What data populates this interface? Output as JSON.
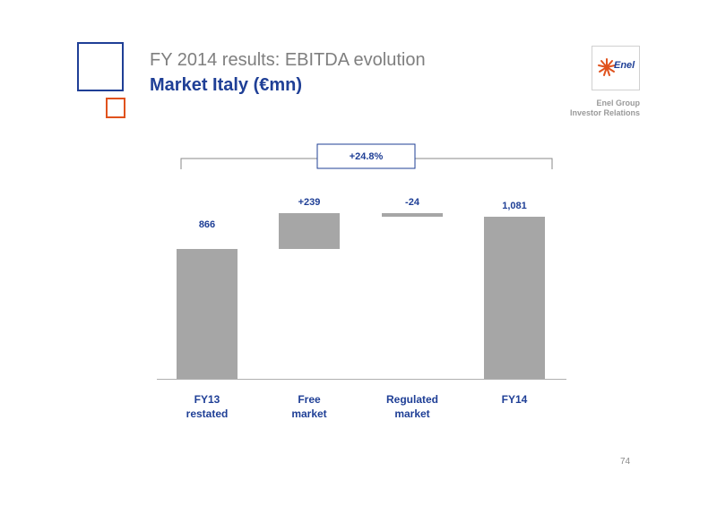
{
  "slide": {
    "title": "FY 2014 results: EBITDA evolution",
    "subtitle": "Market Italy (€mn)",
    "page_number": "74"
  },
  "branding": {
    "logo_text": "Enel",
    "group_line1": "Enel Group",
    "group_line2": "Investor Relations",
    "logo_icon": "enel-sunburst-icon"
  },
  "colors": {
    "brand_blue": "#1f3f96",
    "accent_orange": "#e0521d",
    "bar_gray": "#a6a6a6",
    "title_gray": "#7f7f7f"
  },
  "chart_data": {
    "type": "bar",
    "subtype": "waterfall",
    "categories": [
      "FY13\nrestated",
      "Free\nmarket",
      "Regulated\nmarket",
      "FY14"
    ],
    "steps": [
      {
        "kind": "total",
        "start": 0,
        "end": 866,
        "label": "866"
      },
      {
        "kind": "delta",
        "start": 866,
        "end": 1105,
        "label": "+239"
      },
      {
        "kind": "delta",
        "start": 1105,
        "end": 1081,
        "label": "-24"
      },
      {
        "kind": "total",
        "start": 0,
        "end": 1081,
        "label": "1,081"
      }
    ],
    "annotation": "+24.8%",
    "ylim": [
      0,
      1105
    ]
  }
}
